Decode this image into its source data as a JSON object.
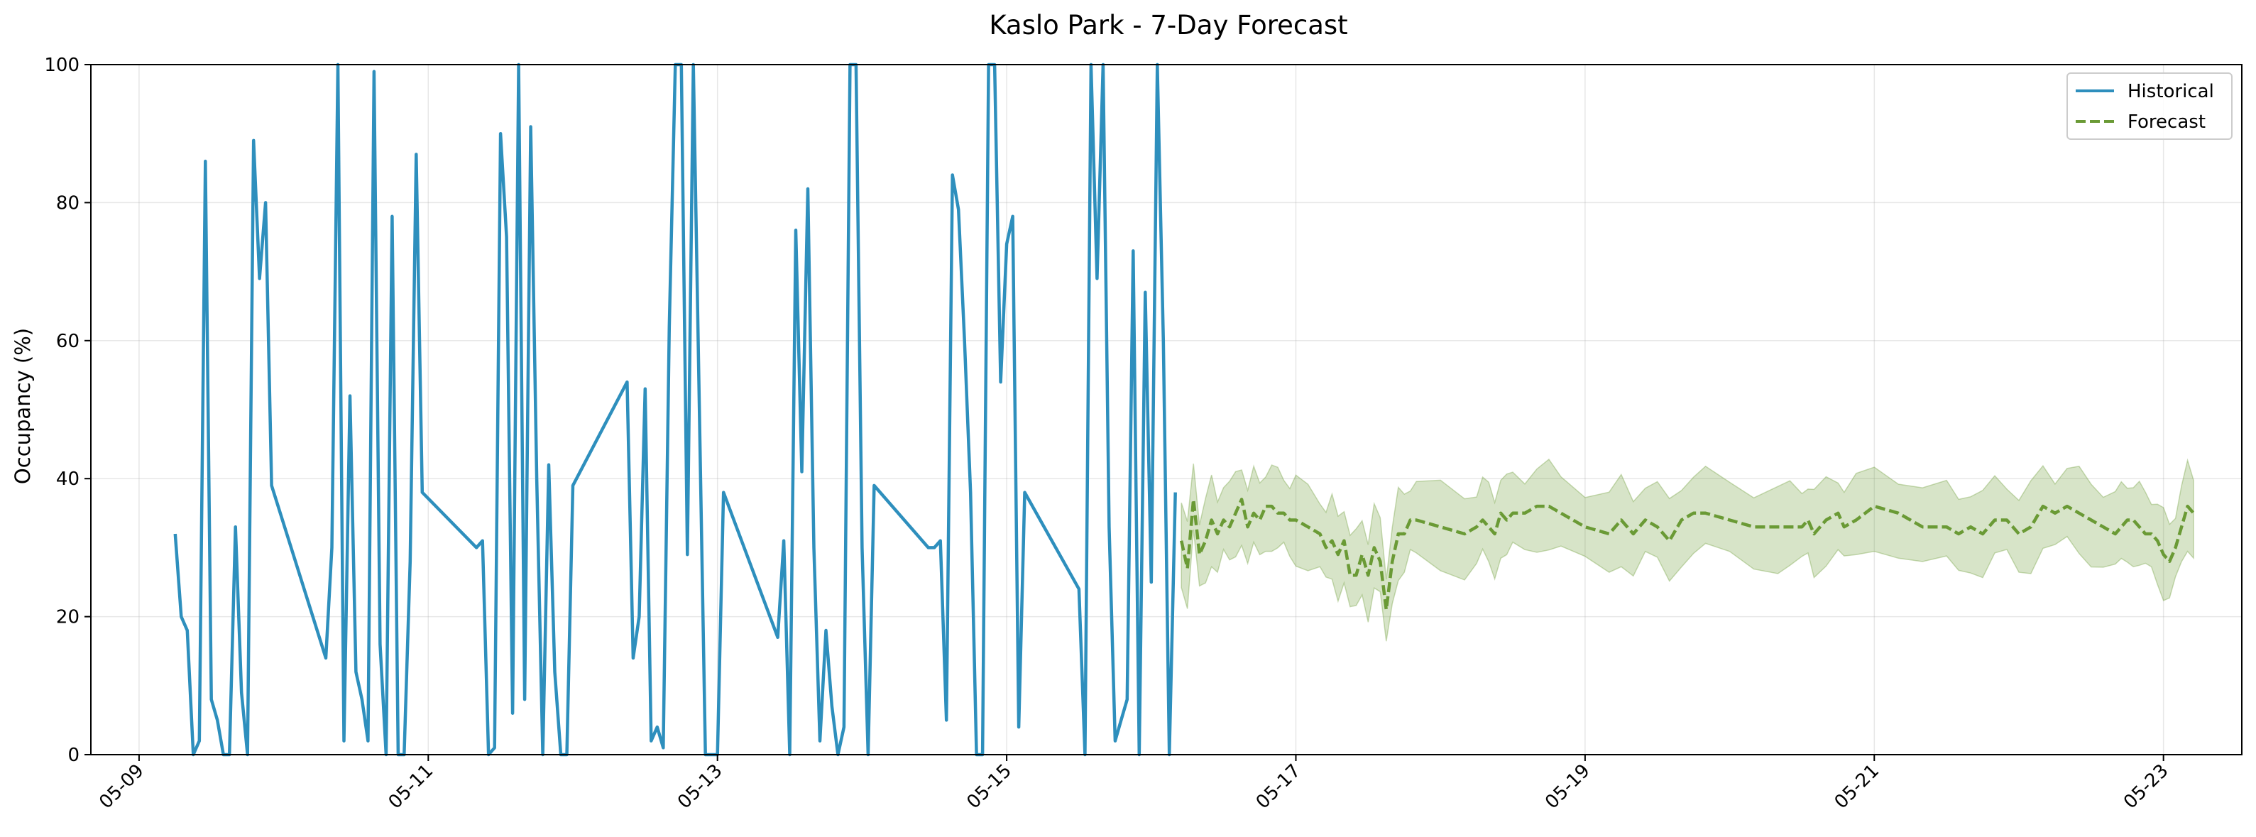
{
  "chart_data": {
    "type": "line",
    "title": "Kaslo Park - 7-Day Forecast",
    "xlabel": "",
    "ylabel": "Occupancy (%)",
    "xlim": [
      "2025-05-08T16:00",
      "2025-05-23T13:00"
    ],
    "ylim": [
      0,
      100
    ],
    "x_ticks": [
      "05-09",
      "05-11",
      "05-13",
      "05-15",
      "05-17",
      "05-19",
      "05-21",
      "05-23"
    ],
    "y_ticks": [
      0,
      20,
      40,
      60,
      80,
      100
    ],
    "grid": true,
    "legend_position": "top-right",
    "series": [
      {
        "name": "Historical",
        "style": "solid",
        "color": "#2e8fbd",
        "points": [
          [
            "2025-05-09T06:00",
            32
          ],
          [
            "2025-05-09T07:00",
            20
          ],
          [
            "2025-05-09T08:00",
            18
          ],
          [
            "2025-05-09T09:00",
            0
          ],
          [
            "2025-05-09T10:00",
            2
          ],
          [
            "2025-05-09T11:00",
            86
          ],
          [
            "2025-05-09T12:00",
            8
          ],
          [
            "2025-05-09T13:00",
            5
          ],
          [
            "2025-05-09T14:00",
            0
          ],
          [
            "2025-05-09T15:00",
            0
          ],
          [
            "2025-05-09T16:00",
            33
          ],
          [
            "2025-05-09T17:00",
            9
          ],
          [
            "2025-05-09T18:00",
            0
          ],
          [
            "2025-05-09T19:00",
            89
          ],
          [
            "2025-05-09T20:00",
            69
          ],
          [
            "2025-05-09T21:00",
            80
          ],
          [
            "2025-05-09T22:00",
            39
          ],
          [
            "2025-05-10T07:00",
            14
          ],
          [
            "2025-05-10T08:00",
            30
          ],
          [
            "2025-05-10T09:00",
            100
          ],
          [
            "2025-05-10T10:00",
            2
          ],
          [
            "2025-05-10T11:00",
            52
          ],
          [
            "2025-05-10T12:00",
            12
          ],
          [
            "2025-05-10T13:00",
            8
          ],
          [
            "2025-05-10T14:00",
            2
          ],
          [
            "2025-05-10T15:00",
            99
          ],
          [
            "2025-05-10T16:00",
            16
          ],
          [
            "2025-05-10T17:00",
            0
          ],
          [
            "2025-05-10T18:00",
            78
          ],
          [
            "2025-05-10T19:00",
            0
          ],
          [
            "2025-05-10T20:00",
            0
          ],
          [
            "2025-05-10T21:00",
            28
          ],
          [
            "2025-05-10T22:00",
            87
          ],
          [
            "2025-05-10T23:00",
            38
          ],
          [
            "2025-05-11T08:00",
            30
          ],
          [
            "2025-05-11T09:00",
            31
          ],
          [
            "2025-05-11T10:00",
            0
          ],
          [
            "2025-05-11T11:00",
            1
          ],
          [
            "2025-05-11T12:00",
            90
          ],
          [
            "2025-05-11T13:00",
            75
          ],
          [
            "2025-05-11T14:00",
            6
          ],
          [
            "2025-05-11T15:00",
            100
          ],
          [
            "2025-05-11T16:00",
            8
          ],
          [
            "2025-05-11T17:00",
            91
          ],
          [
            "2025-05-11T18:00",
            40
          ],
          [
            "2025-05-11T19:00",
            0
          ],
          [
            "2025-05-11T20:00",
            42
          ],
          [
            "2025-05-11T21:00",
            12
          ],
          [
            "2025-05-11T22:00",
            0
          ],
          [
            "2025-05-11T23:00",
            0
          ],
          [
            "2025-05-12T00:00",
            39
          ],
          [
            "2025-05-12T09:00",
            54
          ],
          [
            "2025-05-12T10:00",
            14
          ],
          [
            "2025-05-12T11:00",
            20
          ],
          [
            "2025-05-12T12:00",
            53
          ],
          [
            "2025-05-12T13:00",
            2
          ],
          [
            "2025-05-12T14:00",
            4
          ],
          [
            "2025-05-12T15:00",
            1
          ],
          [
            "2025-05-12T16:00",
            62
          ],
          [
            "2025-05-12T17:00",
            100
          ],
          [
            "2025-05-12T18:00",
            100
          ],
          [
            "2025-05-12T19:00",
            29
          ],
          [
            "2025-05-12T20:00",
            100
          ],
          [
            "2025-05-12T21:00",
            50
          ],
          [
            "2025-05-12T22:00",
            0
          ],
          [
            "2025-05-12T23:00",
            0
          ],
          [
            "2025-05-13T00:00",
            0
          ],
          [
            "2025-05-13T01:00",
            38
          ],
          [
            "2025-05-13T10:00",
            17
          ],
          [
            "2025-05-13T11:00",
            31
          ],
          [
            "2025-05-13T12:00",
            0
          ],
          [
            "2025-05-13T13:00",
            76
          ],
          [
            "2025-05-13T14:00",
            41
          ],
          [
            "2025-05-13T15:00",
            82
          ],
          [
            "2025-05-13T16:00",
            30
          ],
          [
            "2025-05-13T17:00",
            2
          ],
          [
            "2025-05-13T18:00",
            18
          ],
          [
            "2025-05-13T19:00",
            7
          ],
          [
            "2025-05-13T20:00",
            0
          ],
          [
            "2025-05-13T21:00",
            4
          ],
          [
            "2025-05-13T22:00",
            100
          ],
          [
            "2025-05-13T23:00",
            100
          ],
          [
            "2025-05-14T00:00",
            30
          ],
          [
            "2025-05-14T01:00",
            0
          ],
          [
            "2025-05-14T02:00",
            39
          ],
          [
            "2025-05-14T11:00",
            30
          ],
          [
            "2025-05-14T12:00",
            30
          ],
          [
            "2025-05-14T13:00",
            31
          ],
          [
            "2025-05-14T14:00",
            5
          ],
          [
            "2025-05-14T15:00",
            84
          ],
          [
            "2025-05-14T16:00",
            79
          ],
          [
            "2025-05-14T17:00",
            60
          ],
          [
            "2025-05-14T18:00",
            38
          ],
          [
            "2025-05-14T19:00",
            0
          ],
          [
            "2025-05-14T20:00",
            0
          ],
          [
            "2025-05-14T21:00",
            100
          ],
          [
            "2025-05-14T22:00",
            100
          ],
          [
            "2025-05-14T23:00",
            54
          ],
          [
            "2025-05-15T00:00",
            74
          ],
          [
            "2025-05-15T01:00",
            78
          ],
          [
            "2025-05-15T02:00",
            4
          ],
          [
            "2025-05-15T03:00",
            38
          ],
          [
            "2025-05-15T12:00",
            24
          ],
          [
            "2025-05-15T13:00",
            0
          ],
          [
            "2025-05-15T14:00",
            100
          ],
          [
            "2025-05-15T15:00",
            69
          ],
          [
            "2025-05-15T16:00",
            100
          ],
          [
            "2025-05-15T17:00",
            33
          ],
          [
            "2025-05-15T18:00",
            2
          ],
          [
            "2025-05-15T19:00",
            5
          ],
          [
            "2025-05-15T20:00",
            8
          ],
          [
            "2025-05-15T21:00",
            73
          ],
          [
            "2025-05-15T22:00",
            0
          ],
          [
            "2025-05-15T23:00",
            67
          ],
          [
            "2025-05-16T00:00",
            25
          ],
          [
            "2025-05-16T01:00",
            100
          ],
          [
            "2025-05-16T02:00",
            60
          ],
          [
            "2025-05-16T03:00",
            0
          ],
          [
            "2025-05-16T04:00",
            38
          ]
        ]
      },
      {
        "name": "Forecast",
        "style": "dashed",
        "color": "#6a9a35",
        "band_halfwidth": 5.5,
        "points": [
          [
            "2025-05-16T05:00",
            31
          ],
          [
            "2025-05-16T06:00",
            27
          ],
          [
            "2025-05-16T07:00",
            37
          ],
          [
            "2025-05-16T08:00",
            29
          ],
          [
            "2025-05-16T09:00",
            31
          ],
          [
            "2025-05-16T10:00",
            34
          ],
          [
            "2025-05-16T11:00",
            32
          ],
          [
            "2025-05-16T12:00",
            34
          ],
          [
            "2025-05-16T13:00",
            33
          ],
          [
            "2025-05-16T14:00",
            35
          ],
          [
            "2025-05-16T15:00",
            37
          ],
          [
            "2025-05-16T16:00",
            33
          ],
          [
            "2025-05-16T17:00",
            35
          ],
          [
            "2025-05-16T18:00",
            34
          ],
          [
            "2025-05-16T19:00",
            36
          ],
          [
            "2025-05-16T20:00",
            36
          ],
          [
            "2025-05-16T21:00",
            35
          ],
          [
            "2025-05-16T22:00",
            35
          ],
          [
            "2025-05-16T23:00",
            34
          ],
          [
            "2025-05-17T00:00",
            34
          ],
          [
            "2025-05-17T02:00",
            33
          ],
          [
            "2025-05-17T04:00",
            32
          ],
          [
            "2025-05-17T05:00",
            30
          ],
          [
            "2025-05-17T06:00",
            31
          ],
          [
            "2025-05-17T07:00",
            29
          ],
          [
            "2025-05-17T08:00",
            31
          ],
          [
            "2025-05-17T09:00",
            26
          ],
          [
            "2025-05-17T10:00",
            26
          ],
          [
            "2025-05-17T11:00",
            29
          ],
          [
            "2025-05-17T12:00",
            26
          ],
          [
            "2025-05-17T13:00",
            30
          ],
          [
            "2025-05-17T14:00",
            28
          ],
          [
            "2025-05-17T15:00",
            21
          ],
          [
            "2025-05-17T16:00",
            28
          ],
          [
            "2025-05-17T17:00",
            32
          ],
          [
            "2025-05-17T18:00",
            32
          ],
          [
            "2025-05-17T19:00",
            34
          ],
          [
            "2025-05-17T20:00",
            34
          ],
          [
            "2025-05-18T00:00",
            33
          ],
          [
            "2025-05-18T04:00",
            32
          ],
          [
            "2025-05-18T06:00",
            33
          ],
          [
            "2025-05-18T07:00",
            34
          ],
          [
            "2025-05-18T08:00",
            33
          ],
          [
            "2025-05-18T09:00",
            32
          ],
          [
            "2025-05-18T10:00",
            35
          ],
          [
            "2025-05-18T11:00",
            34
          ],
          [
            "2025-05-18T12:00",
            35
          ],
          [
            "2025-05-18T14:00",
            35
          ],
          [
            "2025-05-18T16:00",
            36
          ],
          [
            "2025-05-18T18:00",
            36
          ],
          [
            "2025-05-18T20:00",
            35
          ],
          [
            "2025-05-19T00:00",
            33
          ],
          [
            "2025-05-19T04:00",
            32
          ],
          [
            "2025-05-19T06:00",
            34
          ],
          [
            "2025-05-19T08:00",
            32
          ],
          [
            "2025-05-19T10:00",
            34
          ],
          [
            "2025-05-19T12:00",
            33
          ],
          [
            "2025-05-19T14:00",
            31
          ],
          [
            "2025-05-19T16:00",
            34
          ],
          [
            "2025-05-19T18:00",
            35
          ],
          [
            "2025-05-19T20:00",
            35
          ],
          [
            "2025-05-20T00:00",
            34
          ],
          [
            "2025-05-20T04:00",
            33
          ],
          [
            "2025-05-20T08:00",
            33
          ],
          [
            "2025-05-20T10:00",
            33
          ],
          [
            "2025-05-20T12:00",
            33
          ],
          [
            "2025-05-20T13:00",
            34
          ],
          [
            "2025-05-20T14:00",
            32
          ],
          [
            "2025-05-20T16:00",
            34
          ],
          [
            "2025-05-20T18:00",
            35
          ],
          [
            "2025-05-20T19:00",
            33
          ],
          [
            "2025-05-20T21:00",
            34
          ],
          [
            "2025-05-21T00:00",
            36
          ],
          [
            "2025-05-21T04:00",
            35
          ],
          [
            "2025-05-21T08:00",
            33
          ],
          [
            "2025-05-21T12:00",
            33
          ],
          [
            "2025-05-21T14:00",
            32
          ],
          [
            "2025-05-21T16:00",
            33
          ],
          [
            "2025-05-21T18:00",
            32
          ],
          [
            "2025-05-21T20:00",
            34
          ],
          [
            "2025-05-21T22:00",
            34
          ],
          [
            "2025-05-22T00:00",
            32
          ],
          [
            "2025-05-22T02:00",
            33
          ],
          [
            "2025-05-22T04:00",
            36
          ],
          [
            "2025-05-22T06:00",
            35
          ],
          [
            "2025-05-22T08:00",
            36
          ],
          [
            "2025-05-22T10:00",
            35
          ],
          [
            "2025-05-22T12:00",
            34
          ],
          [
            "2025-05-22T14:00",
            33
          ],
          [
            "2025-05-22T16:00",
            32
          ],
          [
            "2025-05-22T17:00",
            33
          ],
          [
            "2025-05-22T18:00",
            34
          ],
          [
            "2025-05-22T19:00",
            34
          ],
          [
            "2025-05-22T20:00",
            33
          ],
          [
            "2025-05-22T21:00",
            32
          ],
          [
            "2025-05-22T22:00",
            32
          ],
          [
            "2025-05-22T23:00",
            31
          ],
          [
            "2025-05-23T00:00",
            29
          ],
          [
            "2025-05-23T01:00",
            28
          ],
          [
            "2025-05-23T02:00",
            30
          ],
          [
            "2025-05-23T03:00",
            33
          ],
          [
            "2025-05-23T04:00",
            36
          ],
          [
            "2025-05-23T05:00",
            35
          ]
        ]
      }
    ]
  }
}
